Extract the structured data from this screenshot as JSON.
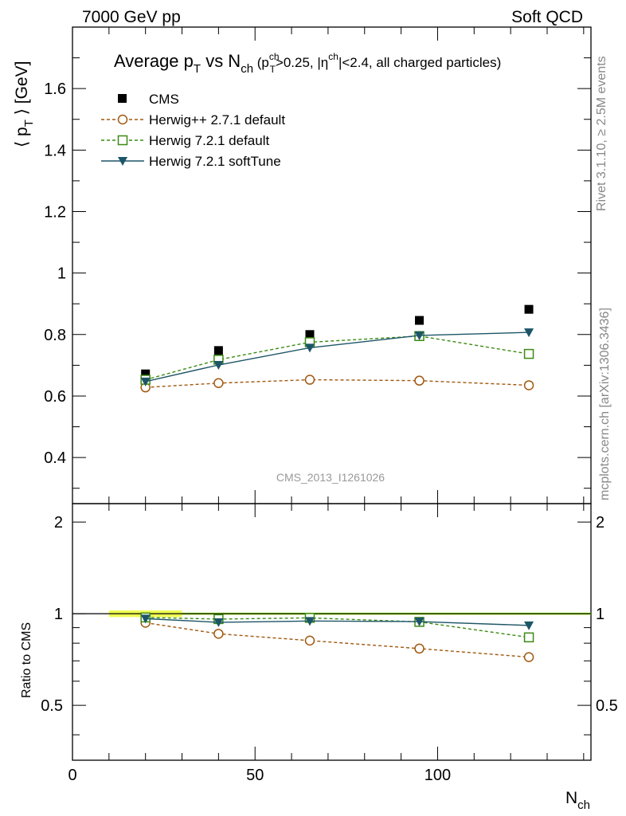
{
  "header": {
    "left": "7000 GeV pp",
    "right": "Soft QCD"
  },
  "side_labels": {
    "top": "Rivet 3.1.10, ≥ 2.5M events",
    "bottom": "mcplots.cern.ch [arXiv:1306.3436]"
  },
  "watermark": "CMS_2013_I1261026",
  "title": {
    "main": "Average p",
    "main_sub": "T",
    "mid": " vs N",
    "mid_sub": "ch",
    "cond_open": " (p",
    "cond_sup": "ch",
    "cond_sub": "T",
    "cond_a": ">0.25, |η",
    "cond_sup2": "ch",
    "cond_b": "|<2.4, all charged particles)"
  },
  "ylabel_top": {
    "a": "⟨ p",
    "sub": "T",
    "b": " ⟩ [GeV]"
  },
  "ylabel_bottom": "Ratio to CMS",
  "xlabel": {
    "a": "N",
    "sub": "ch"
  },
  "colors": {
    "cms": "#000000",
    "herwigpp": "#a0580f",
    "herwig721": "#3c8a12",
    "softtune": "#1d5568",
    "band": "#f0ff50"
  },
  "chart_data": [
    {
      "type": "line",
      "panel": "main",
      "x": [
        20,
        40,
        65,
        95,
        125
      ],
      "xlim": [
        0,
        142
      ],
      "ylim": [
        0.25,
        1.8
      ],
      "yticks": [
        "0.4",
        "0.6",
        "0.8",
        "1",
        "1.2",
        "1.4",
        "1.6"
      ],
      "xticks": [
        "0",
        "50",
        "100"
      ],
      "series": [
        {
          "name": "CMS",
          "key": "cms",
          "marker": "square-filled",
          "line": "none",
          "values": [
            0.672,
            0.748,
            0.8,
            0.846,
            0.882
          ]
        },
        {
          "name": "Herwig++ 2.7.1 default",
          "key": "herwigpp",
          "marker": "circle-open",
          "line": "dashed",
          "values": [
            0.628,
            0.642,
            0.653,
            0.65,
            0.635
          ]
        },
        {
          "name": "Herwig 7.2.1 default",
          "key": "herwig721",
          "marker": "square-open",
          "line": "dashed",
          "values": [
            0.653,
            0.718,
            0.775,
            0.795,
            0.737
          ]
        },
        {
          "name": "Herwig 7.2.1 softTune",
          "key": "softtune",
          "marker": "triangle-down",
          "line": "solid",
          "values": [
            0.647,
            0.701,
            0.757,
            0.797,
            0.807
          ]
        }
      ]
    },
    {
      "type": "line",
      "panel": "ratio",
      "x": [
        20,
        40,
        65,
        95,
        125
      ],
      "xlim": [
        0,
        142
      ],
      "ylim": [
        0.33,
        2.3
      ],
      "yscale": "log",
      "yticks": [
        "0.5",
        "1",
        "2"
      ],
      "band": {
        "x": [
          10,
          30
        ],
        "lo": 0.975,
        "hi": 1.025
      },
      "series": [
        {
          "name": "Herwig++ 2.7.1 default",
          "key": "herwigpp",
          "marker": "circle-open",
          "line": "dashed",
          "values": [
            0.934,
            0.859,
            0.816,
            0.768,
            0.72
          ]
        },
        {
          "name": "Herwig 7.2.1 default",
          "key": "herwig721",
          "marker": "square-open",
          "line": "dashed",
          "values": [
            0.972,
            0.96,
            0.969,
            0.94,
            0.836
          ]
        },
        {
          "name": "Herwig 7.2.1 softTune",
          "key": "softtune",
          "marker": "triangle-down",
          "line": "solid",
          "values": [
            0.963,
            0.937,
            0.946,
            0.942,
            0.915
          ]
        }
      ]
    }
  ]
}
